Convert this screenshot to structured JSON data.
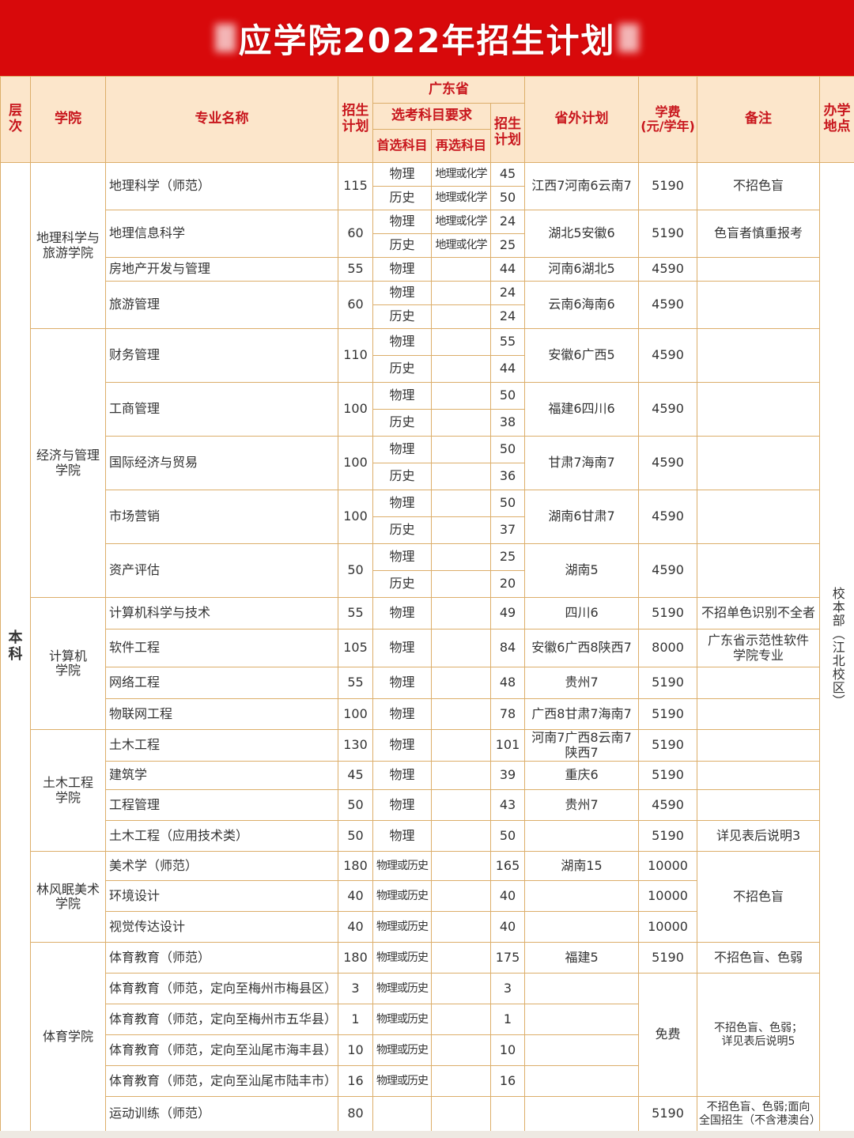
{
  "title": "应学院2022年招生计划",
  "header": {
    "level": "层次",
    "college": "学院",
    "major": "专业名称",
    "plan": "招生\n计划",
    "guangdong": "广东省",
    "subject_req": "选考科目要求",
    "gd_plan": "招生\n计划",
    "first_subject": "首选科目",
    "second_subject": "再选科目",
    "out_of_province": "省外计划",
    "tuition": "学费\n(元/学年)",
    "note": "备注",
    "location": "办学\n地点"
  },
  "level": "本科",
  "location": "校本部（江北校区）",
  "colors": {
    "title_bg": "#d8090b",
    "header_bg": "#fce6cb",
    "header_text": "#c8161d",
    "border": "#dcae6a"
  },
  "colleges": [
    {
      "name": "地理科学与旅游学院",
      "majors": [
        {
          "name": "地理科学（师范）",
          "plan": "115",
          "out": "江西7河南6云南7",
          "fee": "5190",
          "note": "不招色盲",
          "subjects": [
            {
              "first": "物理",
              "second": "地理或化学",
              "plan": "45"
            },
            {
              "first": "历史",
              "second": "地理或化学",
              "plan": "50"
            }
          ]
        },
        {
          "name": "地理信息科学",
          "plan": "60",
          "out": "湖北5安徽6",
          "fee": "5190",
          "note": "色盲者慎重报考",
          "subjects": [
            {
              "first": "物理",
              "second": "地理或化学",
              "plan": "24"
            },
            {
              "first": "历史",
              "second": "地理或化学",
              "plan": "25"
            }
          ]
        },
        {
          "name": "房地产开发与管理",
          "plan": "55",
          "out": "河南6湖北5",
          "fee": "4590",
          "note": "",
          "subjects": [
            {
              "first": "物理",
              "second": "",
              "plan": "44"
            }
          ]
        },
        {
          "name": "旅游管理",
          "plan": "60",
          "out": "云南6海南6",
          "fee": "4590",
          "note": "",
          "subjects": [
            {
              "first": "物理",
              "second": "",
              "plan": "24"
            },
            {
              "first": "历史",
              "second": "",
              "plan": "24"
            }
          ]
        }
      ]
    },
    {
      "name": "经济与管理学院",
      "majors": [
        {
          "name": "财务管理",
          "plan": "110",
          "out": "安徽6广西5",
          "fee": "4590",
          "note": "",
          "subjects": [
            {
              "first": "物理",
              "second": "",
              "plan": "55"
            },
            {
              "first": "历史",
              "second": "",
              "plan": "44"
            }
          ]
        },
        {
          "name": "工商管理",
          "plan": "100",
          "out": "福建6四川6",
          "fee": "4590",
          "note": "",
          "subjects": [
            {
              "first": "物理",
              "second": "",
              "plan": "50"
            },
            {
              "first": "历史",
              "second": "",
              "plan": "38"
            }
          ]
        },
        {
          "name": "国际经济与贸易",
          "plan": "100",
          "out": "甘肃7海南7",
          "fee": "4590",
          "note": "",
          "subjects": [
            {
              "first": "物理",
              "second": "",
              "plan": "50"
            },
            {
              "first": "历史",
              "second": "",
              "plan": "36"
            }
          ]
        },
        {
          "name": "市场营销",
          "plan": "100",
          "out": "湖南6甘肃7",
          "fee": "4590",
          "note": "",
          "subjects": [
            {
              "first": "物理",
              "second": "",
              "plan": "50"
            },
            {
              "first": "历史",
              "second": "",
              "plan": "37"
            }
          ]
        },
        {
          "name": "资产评估",
          "plan": "50",
          "out": "湖南5",
          "fee": "4590",
          "note": "",
          "subjects": [
            {
              "first": "物理",
              "second": "",
              "plan": "25"
            },
            {
              "first": "历史",
              "second": "",
              "plan": "20"
            }
          ]
        }
      ]
    },
    {
      "name": "计算机\n学院",
      "majors": [
        {
          "name": "计算机科学与技术",
          "plan": "55",
          "out": "四川6",
          "fee": "5190",
          "note": "不招单色识别不全者",
          "subjects": [
            {
              "first": "物理",
              "second": "",
              "plan": "49"
            }
          ]
        },
        {
          "name": "软件工程",
          "plan": "105",
          "out": "安徽6广西8陕西7",
          "fee": "8000",
          "note": "广东省示范性软件\n学院专业",
          "subjects": [
            {
              "first": "物理",
              "second": "",
              "plan": "84"
            }
          ]
        },
        {
          "name": "网络工程",
          "plan": "55",
          "out": "贵州7",
          "fee": "5190",
          "note": "",
          "subjects": [
            {
              "first": "物理",
              "second": "",
              "plan": "48"
            }
          ]
        },
        {
          "name": "物联网工程",
          "plan": "100",
          "out": "广西8甘肃7海南7",
          "fee": "5190",
          "note": "",
          "subjects": [
            {
              "first": "物理",
              "second": "",
              "plan": "78"
            }
          ]
        }
      ]
    },
    {
      "name": "土木工程\n学院",
      "majors": [
        {
          "name": "土木工程",
          "plan": "130",
          "out": "河南7广西8云南7\n陕西7",
          "fee": "5190",
          "note": "",
          "subjects": [
            {
              "first": "物理",
              "second": "",
              "plan": "101"
            }
          ]
        },
        {
          "name": "建筑学",
          "plan": "45",
          "out": "重庆6",
          "fee": "5190",
          "note": "",
          "subjects": [
            {
              "first": "物理",
              "second": "",
              "plan": "39"
            }
          ]
        },
        {
          "name": "工程管理",
          "plan": "50",
          "out": "贵州7",
          "fee": "4590",
          "note": "",
          "subjects": [
            {
              "first": "物理",
              "second": "",
              "plan": "43"
            }
          ]
        },
        {
          "name": "土木工程（应用技术类）",
          "plan": "50",
          "out": "",
          "fee": "5190",
          "note": "详见表后说明3",
          "subjects": [
            {
              "first": "物理",
              "second": "",
              "plan": "50"
            }
          ]
        }
      ]
    },
    {
      "name": "林风眠美术\n学院",
      "majors": [
        {
          "name": "美术学（师范）",
          "plan": "180",
          "out": "湖南15",
          "fee": "10000",
          "note": "不招色盲",
          "subjects": [
            {
              "first": "物理或历史",
              "second": "",
              "plan": "165"
            }
          ]
        },
        {
          "name": "环境设计",
          "plan": "40",
          "out": "",
          "fee": "10000",
          "subjects": [
            {
              "first": "物理或历史",
              "second": "",
              "plan": "40"
            }
          ]
        },
        {
          "name": "视觉传达设计",
          "plan": "40",
          "out": "",
          "fee": "10000",
          "subjects": [
            {
              "first": "物理或历史",
              "second": "",
              "plan": "40"
            }
          ]
        }
      ]
    },
    {
      "name": "体育学院",
      "majors": [
        {
          "name": "体育教育（师范）",
          "plan": "180",
          "out": "福建5",
          "fee": "5190",
          "note": "不招色盲、色弱",
          "subjects": [
            {
              "first": "物理或历史",
              "second": "",
              "plan": "175"
            }
          ]
        },
        {
          "name": "体育教育（师范，定向至梅州市梅县区）",
          "plan": "3",
          "out": "",
          "fee": "免费",
          "note": "不招色盲、色弱；\n详见表后说明5",
          "subjects": [
            {
              "first": "物理或历史",
              "second": "",
              "plan": "3"
            }
          ]
        },
        {
          "name": "体育教育（师范，定向至梅州市五华县）",
          "plan": "1",
          "out": "",
          "subjects": [
            {
              "first": "物理或历史",
              "second": "",
              "plan": "1"
            }
          ]
        },
        {
          "name": "体育教育（师范，定向至汕尾市海丰县）",
          "plan": "10",
          "out": "",
          "subjects": [
            {
              "first": "物理或历史",
              "second": "",
              "plan": "10"
            }
          ]
        },
        {
          "name": "体育教育（师范，定向至汕尾市陆丰市）",
          "plan": "16",
          "out": "",
          "subjects": [
            {
              "first": "物理或历史",
              "second": "",
              "plan": "16"
            }
          ]
        },
        {
          "name": "运动训练（师范）",
          "plan": "80",
          "out": "",
          "fee": "5190",
          "note": "不招色盲、色弱;面向\n全国招生（不含港澳台）",
          "subjects": [
            {
              "first": "",
              "second": "",
              "plan": ""
            }
          ]
        }
      ]
    }
  ]
}
